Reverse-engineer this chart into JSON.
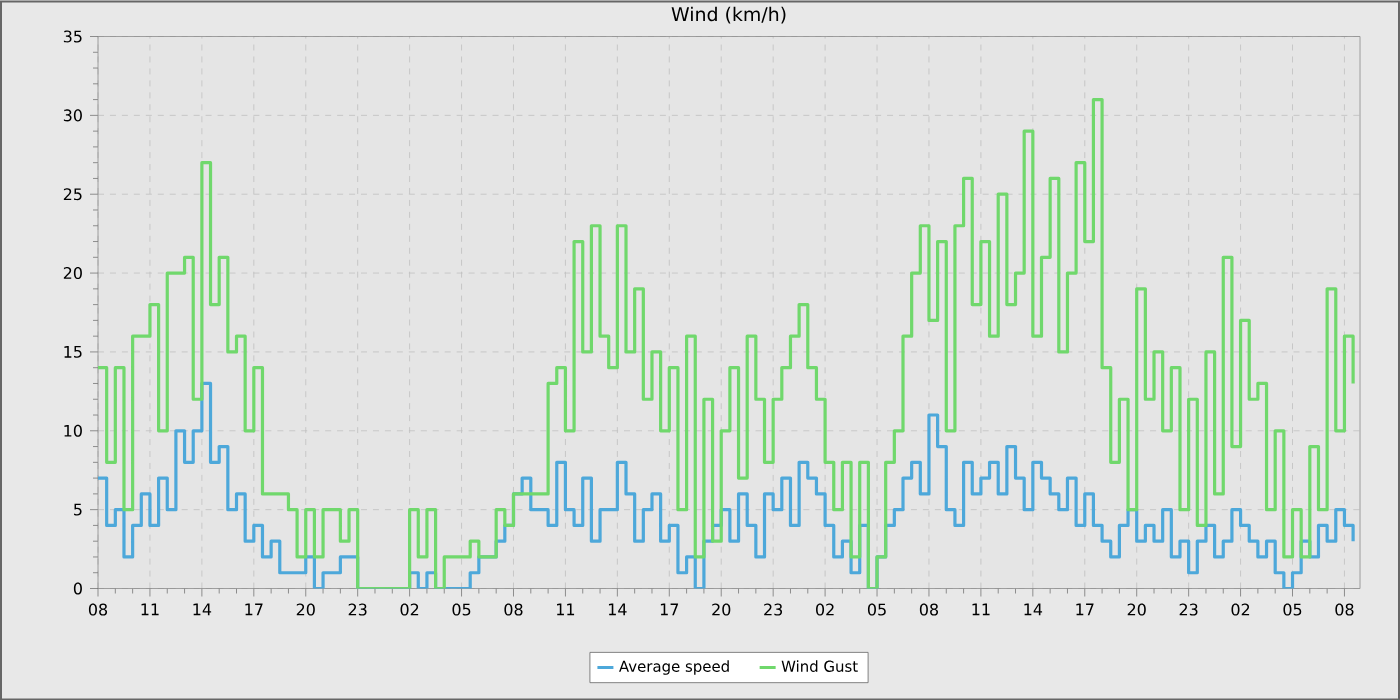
{
  "chart_data": {
    "type": "step",
    "title": "Wind (km/h)",
    "categories": [
      "08",
      null,
      null,
      null,
      null,
      null,
      "11",
      null,
      null,
      null,
      null,
      null,
      "14",
      null,
      null,
      null,
      null,
      null,
      "17",
      null,
      null,
      null,
      null,
      null,
      "20",
      null,
      null,
      null,
      null,
      null,
      "23",
      null,
      null,
      null,
      null,
      null,
      "02",
      null,
      null,
      null,
      null,
      null,
      "05",
      null,
      null,
      null,
      null,
      null,
      "08",
      null,
      null,
      null,
      null,
      null,
      "11",
      null,
      null,
      null,
      null,
      null,
      "14",
      null,
      null,
      null,
      null,
      null,
      "17",
      null,
      null,
      null,
      null,
      null,
      "20",
      null,
      null,
      null,
      null,
      null,
      "23",
      null,
      null,
      null,
      null,
      null,
      "02",
      null,
      null,
      null,
      null,
      null,
      "05",
      null,
      null,
      null,
      null,
      null,
      "08",
      null,
      null,
      null,
      null,
      null,
      "11",
      null,
      null,
      null,
      null,
      null,
      "14",
      null,
      null,
      null,
      null,
      null,
      "17",
      null,
      null,
      null,
      null,
      null,
      "20",
      null,
      null,
      null,
      null,
      null,
      "23",
      null,
      null,
      null,
      null,
      null,
      "02",
      null,
      null,
      null,
      null,
      null,
      "05",
      null,
      null,
      null,
      null,
      null,
      "08",
      null
    ],
    "ylim": [
      0,
      35
    ],
    "yticks": [
      0,
      5,
      10,
      15,
      20,
      25,
      30,
      35
    ],
    "grid": true,
    "legend": "bottom",
    "marker": "none",
    "series": [
      {
        "name": "Average speed",
        "color": "#4da8da",
        "values": [
          7,
          4,
          5,
          2,
          4,
          6,
          4,
          7,
          5,
          10,
          8,
          10,
          13,
          8,
          9,
          5,
          6,
          3,
          4,
          2,
          3,
          1,
          1,
          1,
          2,
          0,
          1,
          1,
          2,
          2,
          0,
          0,
          0,
          0,
          0,
          0,
          1,
          0,
          1,
          0,
          0,
          0,
          0,
          1,
          2,
          2,
          3,
          4,
          6,
          7,
          5,
          5,
          4,
          8,
          5,
          4,
          7,
          3,
          5,
          5,
          8,
          6,
          3,
          5,
          6,
          3,
          4,
          1,
          2,
          0,
          3,
          4,
          5,
          3,
          6,
          4,
          2,
          6,
          5,
          7,
          4,
          8,
          7,
          6,
          4,
          2,
          3,
          1,
          4,
          0,
          2,
          4,
          5,
          7,
          8,
          6,
          11,
          9,
          5,
          4,
          8,
          6,
          7,
          8,
          6,
          9,
          7,
          5,
          8,
          7,
          6,
          5,
          7,
          4,
          6,
          4,
          3,
          2,
          4,
          5,
          3,
          4,
          3,
          5,
          2,
          3,
          1,
          3,
          4,
          2,
          3,
          5,
          4,
          3,
          2,
          3,
          1,
          0,
          1,
          3,
          2,
          4,
          3,
          5,
          4,
          3
        ]
      },
      {
        "name": "Wind Gust",
        "color": "#70d86c",
        "values": [
          14,
          8,
          14,
          5,
          16,
          16,
          18,
          10,
          20,
          20,
          21,
          12,
          27,
          18,
          21,
          15,
          16,
          10,
          14,
          6,
          6,
          6,
          5,
          2,
          5,
          2,
          5,
          5,
          3,
          5,
          0,
          0,
          0,
          0,
          0,
          0,
          5,
          2,
          5,
          0,
          2,
          2,
          2,
          3,
          2,
          2,
          5,
          4,
          6,
          6,
          6,
          6,
          13,
          14,
          10,
          22,
          15,
          23,
          16,
          14,
          23,
          15,
          19,
          12,
          15,
          10,
          14,
          5,
          16,
          2,
          12,
          3,
          10,
          14,
          7,
          16,
          12,
          8,
          12,
          14,
          16,
          18,
          14,
          12,
          8,
          5,
          8,
          2,
          8,
          0,
          2,
          8,
          10,
          16,
          20,
          23,
          17,
          22,
          10,
          23,
          26,
          18,
          22,
          16,
          25,
          18,
          20,
          29,
          16,
          21,
          26,
          15,
          20,
          27,
          22,
          31,
          14,
          8,
          12,
          5,
          19,
          12,
          15,
          10,
          14,
          5,
          12,
          4,
          15,
          6,
          21,
          9,
          17,
          12,
          13,
          5,
          10,
          2,
          5,
          2,
          9,
          5,
          19,
          10,
          16,
          13
        ]
      }
    ]
  }
}
